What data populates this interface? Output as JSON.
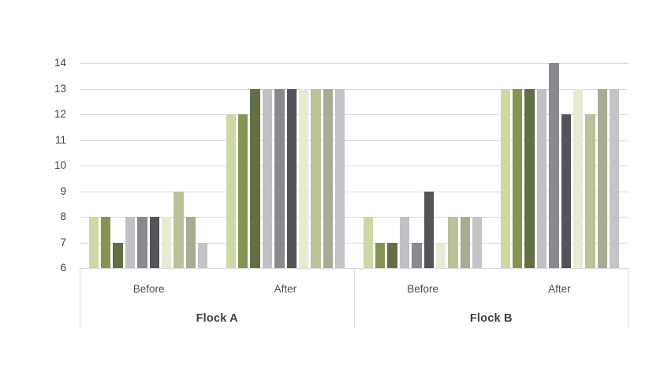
{
  "chart_data": {
    "type": "bar",
    "title": "",
    "xlabel": "",
    "ylabel": "",
    "ylim": [
      6,
      14
    ],
    "yticks": [
      6,
      7,
      8,
      9,
      10,
      11,
      12,
      13,
      14
    ],
    "grid": true,
    "legend": "none",
    "series_colors": [
      "#cdd9a2",
      "#879353",
      "#626f44",
      "#c1c1c5",
      "#8a898e",
      "#545358",
      "#e6ecd2",
      "#bac299",
      "#a6ad92",
      "#c4c4c8"
    ],
    "groups": [
      {
        "flock": "Flock A",
        "condition": "Before",
        "values": [
          8,
          8,
          7,
          8,
          8,
          8,
          8,
          9,
          8,
          7
        ]
      },
      {
        "flock": "Flock A",
        "condition": "After",
        "values": [
          12,
          12,
          13,
          13,
          13,
          13,
          13,
          13,
          13,
          13
        ]
      },
      {
        "flock": "Flock B",
        "condition": "Before",
        "values": [
          8,
          7,
          7,
          8,
          7,
          9,
          7,
          8,
          8,
          8
        ]
      },
      {
        "flock": "Flock B",
        "condition": "After",
        "values": [
          13,
          13,
          13,
          13,
          14,
          12,
          13,
          12,
          13,
          13
        ]
      }
    ],
    "axis": {
      "flock_labels": [
        "Flock A",
        "Flock B"
      ],
      "condition_labels": [
        "Before",
        "After"
      ]
    },
    "colors": {
      "gridline": "#d9d9d9",
      "axis_text": "#404040",
      "condition_text": "#4d4d4d",
      "flock_text": "#3f3f3f",
      "background": "#ffffff"
    }
  }
}
